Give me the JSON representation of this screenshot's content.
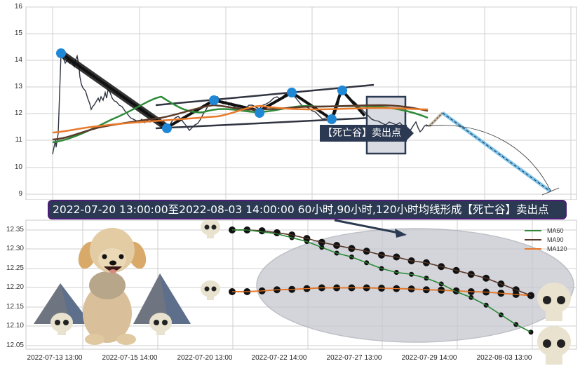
{
  "top_chart": {
    "y_ticks": [
      "16",
      "15",
      "14",
      "13",
      "12",
      "11",
      "10",
      "9"
    ],
    "callout_label": "【死亡谷】卖出点"
  },
  "banner": {
    "text": "2022-07-20 13:00:00至2022-08-03 14:00:00 60小时,90小时,120小时均线形成【死亡谷】卖出点"
  },
  "bottom_chart": {
    "y_ticks": [
      "12.35",
      "12.30",
      "12.25",
      "12.20",
      "12.15",
      "12.10",
      "12.05"
    ],
    "x_ticks": [
      "2022-07-13 13:00",
      "2022-07-15 14:00",
      "2022-07-20 13:00",
      "2022-07-22 14:00",
      "2022-07-27 13:00",
      "2022-07-29 14:00",
      "2022-08-03 13:00"
    ],
    "legend": [
      {
        "label": "MA60",
        "color": "#2e8b3a"
      },
      {
        "label": "MA90",
        "color": "#5a3a2a"
      },
      {
        "label": "MA120",
        "color": "#e8792b"
      }
    ]
  },
  "colors": {
    "ma60": "#2e8b3a",
    "ma90": "#5a3a2a",
    "ma120": "#e8792b",
    "price": "#2f3440",
    "pivot": "#1e88d6",
    "banner_bg": "#2b3a52",
    "banner_border": "#4b1d78"
  },
  "chart_data": [
    {
      "type": "line",
      "title": "",
      "xlabel": "",
      "ylabel": "",
      "ylim": [
        9,
        16
      ],
      "grid": true,
      "series": [
        {
          "name": "price_pivots",
          "points": [
            [
              0,
              14.3
            ],
            [
              1,
              11.45
            ],
            [
              2,
              12.5
            ],
            [
              3,
              12.05
            ],
            [
              4,
              12.8
            ],
            [
              5,
              11.8
            ],
            [
              6,
              12.9
            ]
          ]
        },
        {
          "name": "MA60",
          "values": [
            11.0,
            11.5,
            12.6,
            11.9,
            12.0,
            12.3,
            12.3,
            12.2,
            11.9
          ]
        },
        {
          "name": "MA90",
          "values": [
            11.05,
            11.6,
            11.85,
            12.3,
            12.1,
            12.2,
            12.25,
            12.2,
            12.05
          ]
        },
        {
          "name": "MA120",
          "values": [
            11.3,
            11.55,
            11.75,
            11.9,
            12.3,
            12.1,
            12.15,
            12.1,
            12.0
          ]
        },
        {
          "name": "projection",
          "points": [
            [
              0,
              11.55
            ],
            [
              1,
              12.05
            ],
            [
              2,
              9.05
            ]
          ]
        }
      ],
      "annotations": [
        "【死亡谷】卖出点"
      ]
    },
    {
      "type": "line",
      "title": "",
      "xlabel": "",
      "ylabel": "",
      "ylim": [
        12.04,
        12.37
      ],
      "grid": true,
      "legend_position": "upper right",
      "categories": [
        "2022-07-13 13:00",
        "2022-07-15 14:00",
        "2022-07-20 13:00",
        "2022-07-22 14:00",
        "2022-07-27 13:00",
        "2022-07-29 14:00",
        "2022-08-03 13:00"
      ],
      "series": [
        {
          "name": "MA60",
          "values": [
            12.35,
            12.35,
            12.345,
            12.34,
            12.33,
            12.32,
            12.305,
            12.29,
            12.28,
            12.265,
            12.25,
            12.24,
            12.235,
            12.225,
            12.21,
            12.19,
            12.175,
            12.155,
            12.13,
            12.105,
            12.085
          ]
        },
        {
          "name": "MA90",
          "values": [
            12.35,
            12.35,
            12.348,
            12.343,
            12.337,
            12.328,
            12.318,
            12.31,
            12.302,
            12.295,
            12.285,
            12.28,
            12.27,
            12.265,
            12.255,
            12.245,
            12.235,
            12.225,
            12.21,
            12.195,
            12.18
          ]
        },
        {
          "name": "MA120",
          "values": [
            12.19,
            12.19,
            12.192,
            12.195,
            12.196,
            12.198,
            12.2,
            12.2,
            12.2,
            12.2,
            12.199,
            12.198,
            12.197,
            12.195,
            12.194,
            12.192,
            12.19,
            12.189,
            12.186,
            12.183,
            12.18
          ]
        }
      ]
    }
  ]
}
